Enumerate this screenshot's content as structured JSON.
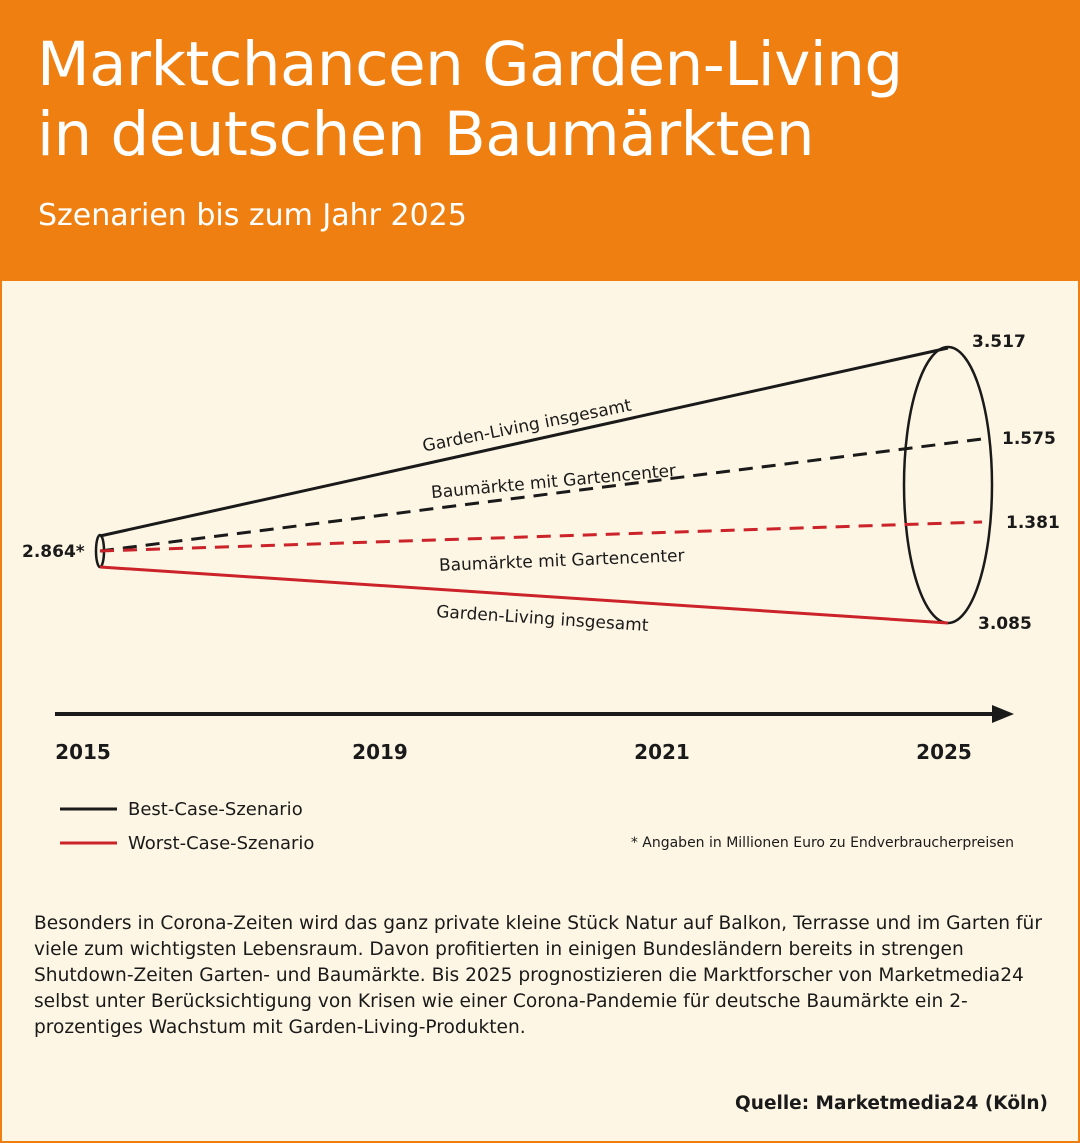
{
  "header": {
    "title_line1": "Marktchancen Garden-Living",
    "title_line2": "in deutschen Baumärkten",
    "subtitle": "Szenarien bis zum Jahr 2025"
  },
  "colors": {
    "accent": "#ef7f10",
    "background": "#fdf6e4",
    "best_case": "#1a1a1a",
    "worst_case": "#cc2229"
  },
  "chart_data": {
    "type": "line",
    "x_ticks": [
      "2015",
      "2019",
      "2021",
      "2025"
    ],
    "start_value": 2864,
    "start_label": "2.864*",
    "series": [
      {
        "scenario": "best",
        "label": "Garden-Living insgesamt",
        "style": "solid",
        "x": [
          2015,
          2025
        ],
        "y": [
          2864,
          3517
        ],
        "end_label": "3.517"
      },
      {
        "scenario": "best",
        "label": "Baumärkte mit Gartencenter",
        "style": "dashed",
        "x": [
          2015,
          2025
        ],
        "y": [
          null,
          1575
        ],
        "end_label": "1.575"
      },
      {
        "scenario": "worst",
        "label": "Baumärkte mit Gartencenter",
        "style": "dashed",
        "x": [
          2015,
          2025
        ],
        "y": [
          null,
          1381
        ],
        "end_label": "1.381"
      },
      {
        "scenario": "worst",
        "label": "Garden-Living insgesamt",
        "style": "solid",
        "x": [
          2015,
          2025
        ],
        "y": [
          2864,
          3085
        ],
        "end_label": "3.085"
      }
    ],
    "legend": [
      {
        "name": "Best-Case-Szenario",
        "color": "#1a1a1a"
      },
      {
        "name": "Worst-Case-Szenario",
        "color": "#cc2229"
      }
    ],
    "footnote": "* Angaben in Millionen Euro zu Endverbraucherpreisen"
  },
  "description": "Besonders in Corona-Zeiten wird das ganz private kleine Stück Natur auf Balkon, Terrasse und im Garten für viele zum wichtigsten Lebensraum. Davon profitierten in einigen Bundesländern bereits in strengen Shutdown-Zeiten Garten- und Baumärkte. Bis 2025 prognostizieren die Marktforscher von Marketmedia24 selbst unter Berücksichtigung von Krisen wie einer Corona-Pandemie für deutsche Baumärkte ein 2-prozentiges Wachstum mit Garden-Living-Produkten.",
  "source": "Quelle: Marketmedia24 (Köln)"
}
